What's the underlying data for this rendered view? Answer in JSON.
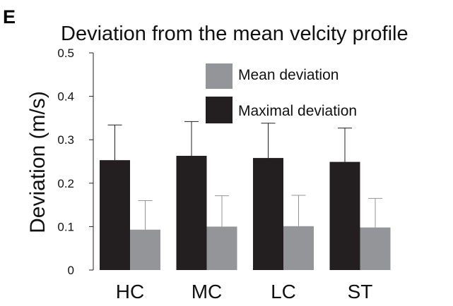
{
  "panel_label": "E",
  "chart_data": {
    "type": "bar",
    "title": "Deviation from the mean velcity profile",
    "xlabel": "",
    "ylabel": "Deviation (m/s)",
    "ylim": [
      0,
      0.5
    ],
    "yticks": [
      0,
      0.1,
      0.2,
      0.3,
      0.4,
      0.5
    ],
    "ytick_labels": [
      "0",
      "0.1",
      "0.2",
      "0.3",
      "0.4",
      "0.5"
    ],
    "categories": [
      "HC",
      "MC",
      "LC",
      "ST"
    ],
    "series": [
      {
        "name": "Maximal deviation",
        "color": "#231f20",
        "values": [
          0.253,
          0.263,
          0.258,
          0.249
        ],
        "error": [
          0.081,
          0.079,
          0.08,
          0.078
        ]
      },
      {
        "name": "Mean deviation",
        "color": "#939598",
        "values": [
          0.093,
          0.1,
          0.101,
          0.098
        ],
        "error": [
          0.067,
          0.071,
          0.071,
          0.067
        ]
      }
    ],
    "legend": {
      "placement": "top-right",
      "order": [
        "Mean deviation",
        "Maximal deviation"
      ]
    },
    "grid": false
  }
}
